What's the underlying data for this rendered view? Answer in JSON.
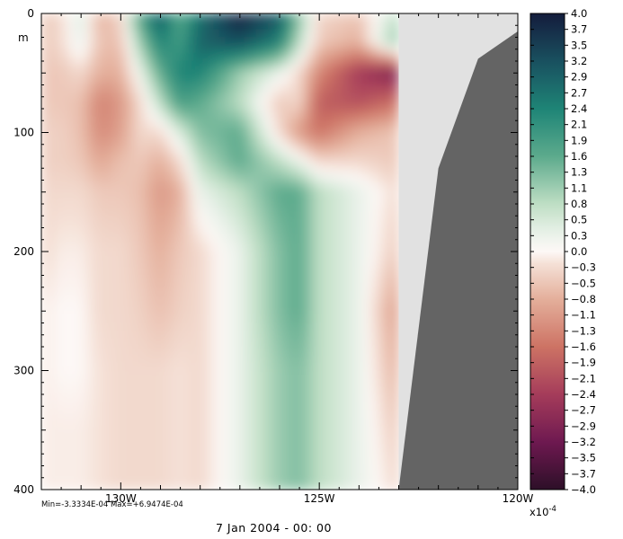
{
  "chart_data": {
    "type": "heatmap",
    "title": "",
    "ylabel": "m",
    "xlabel": "",
    "x_range": [
      132.0,
      120.0
    ],
    "y_range": [
      0,
      400
    ],
    "x_ticks": [
      {
        "value": 130,
        "label": "130W"
      },
      {
        "value": 125,
        "label": "125W"
      },
      {
        "value": 120,
        "label": "120W"
      }
    ],
    "y_ticks": [
      {
        "value": 0,
        "label": "0"
      },
      {
        "value": 100,
        "label": "100"
      },
      {
        "value": 200,
        "label": "200"
      },
      {
        "value": 300,
        "label": "300"
      },
      {
        "value": 400,
        "label": "400"
      }
    ],
    "colorbar": {
      "min": -4.0,
      "max": 4.0,
      "labels": [
        "4.0",
        "3.7",
        "3.5",
        "3.2",
        "2.9",
        "2.7",
        "2.4",
        "2.1",
        "1.9",
        "1.6",
        "1.3",
        "1.1",
        "0.8",
        "0.5",
        "0.3",
        "0.0",
        "-0.3",
        "-0.5",
        "-0.8",
        "-1.1",
        "-1.3",
        "-1.6",
        "-1.9",
        "-2.1",
        "-2.4",
        "-2.7",
        "-2.9",
        "-3.2",
        "-3.5",
        "-3.7",
        "-4.0"
      ],
      "scale_label": "x10",
      "scale_exponent": "-4"
    },
    "min_max_text": "Min=-3.3334E-04  Max=+6.9474E-04",
    "date_label": "7 Jan 2004 - 00: 00",
    "data_columns_lon": [
      132.0,
      131.0,
      130.0,
      129.0,
      128.0,
      127.0,
      126.0,
      125.0,
      124.0,
      123.0
    ],
    "depth_levels": [
      0,
      25,
      50,
      75,
      100,
      125,
      150,
      200,
      250,
      300,
      350,
      400
    ],
    "values_x1e4": [
      [
        -0.5,
        -0.3,
        0.5,
        -0.8,
        -0.3,
        1.9,
        3.2,
        1.6,
        2.7,
        4.0,
        3.2,
        1.3,
        -0.3,
        -0.5,
        0.8
      ],
      [
        -0.5,
        -0.3,
        0.3,
        -0.6,
        -0.6,
        1.1,
        2.4,
        1.9,
        2.9,
        3.2,
        2.4,
        0.8,
        -0.5,
        -0.8,
        1.3
      ],
      [
        -0.5,
        -0.5,
        -0.3,
        -0.8,
        -0.8,
        0.3,
        1.6,
        2.4,
        2.4,
        1.1,
        0.3,
        -0.3,
        -1.3,
        -2.4,
        -3.0
      ],
      [
        -0.5,
        -0.5,
        -0.6,
        -1.4,
        -1.1,
        -0.3,
        0.8,
        1.9,
        1.6,
        0.8,
        -0.5,
        -0.3,
        -1.9,
        -2.1,
        -1.6
      ],
      [
        -0.4,
        -0.4,
        -0.6,
        -1.3,
        -1.0,
        -0.3,
        -0.3,
        0.5,
        1.3,
        1.6,
        -0.3,
        -1.1,
        -1.6,
        -0.8,
        -0.5
      ],
      [
        -0.4,
        -0.4,
        -0.5,
        -0.9,
        -0.6,
        -0.5,
        -0.8,
        -0.3,
        0.8,
        1.6,
        0.8,
        0.3,
        -0.3,
        -0.3,
        -0.5
      ],
      [
        -0.3,
        -0.3,
        -0.3,
        -0.5,
        -0.5,
        -0.6,
        -1.1,
        -0.8,
        0.3,
        0.8,
        1.6,
        1.6,
        0.8,
        0.3,
        -0.3
      ],
      [
        -0.3,
        -0.1,
        -0.1,
        -0.3,
        -0.3,
        -0.5,
        -0.8,
        -0.5,
        -0.3,
        0.3,
        1.3,
        1.6,
        0.8,
        0.3,
        -0.5
      ],
      [
        -0.1,
        0.0,
        0.0,
        -0.3,
        -0.3,
        -0.4,
        -0.6,
        -0.4,
        -0.3,
        0.3,
        1.3,
        1.6,
        0.8,
        0.3,
        -1.1
      ],
      [
        -0.1,
        0.0,
        0.0,
        -0.2,
        -0.3,
        -0.3,
        -0.3,
        -0.2,
        -0.3,
        0.3,
        1.1,
        1.3,
        0.8,
        0.3,
        -0.8
      ],
      [
        -0.1,
        -0.1,
        -0.1,
        -0.2,
        -0.3,
        -0.3,
        -0.3,
        -0.2,
        -0.3,
        0.3,
        1.1,
        1.3,
        0.8,
        0.3,
        -0.5
      ],
      [
        -0.1,
        -0.1,
        -0.1,
        -0.2,
        -0.3,
        -0.3,
        -0.3,
        -0.2,
        -0.3,
        0.3,
        1.1,
        1.3,
        0.8,
        0.3,
        -0.3
      ]
    ],
    "value_columns_lon": [
      132.0,
      131.5,
      131.0,
      130.5,
      130.0,
      129.5,
      129.0,
      128.5,
      128.0,
      127.0,
      126.0,
      125.5,
      125.0,
      124.0,
      123.0
    ],
    "light_mask_color": "#e1e1e1",
    "land_color": "#646464",
    "mask_boundary": [
      [
        123.0,
        0
      ],
      [
        123.0,
        400
      ]
    ],
    "land_boundary": [
      [
        120.0,
        15
      ],
      [
        121.0,
        38
      ],
      [
        122.0,
        130
      ],
      [
        123.0,
        400
      ],
      [
        120.0,
        400
      ]
    ],
    "grid": false
  }
}
